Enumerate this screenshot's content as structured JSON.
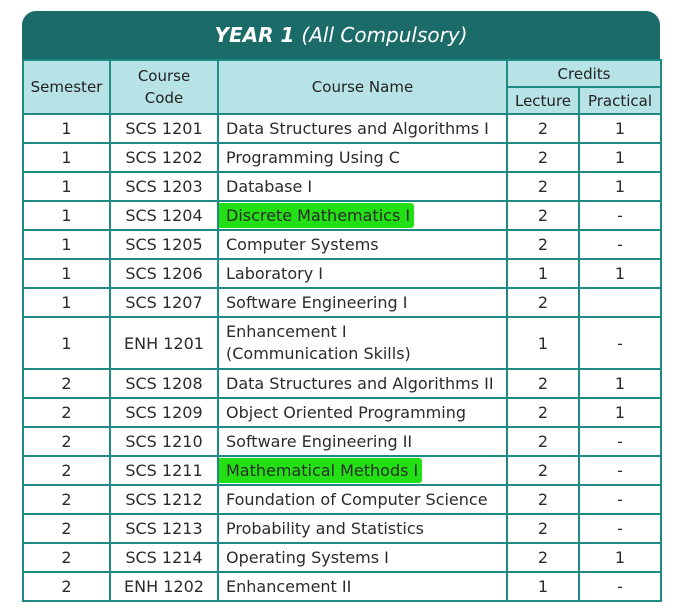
{
  "title": {
    "bold": "YEAR 1",
    "rest": "(All Compulsory)"
  },
  "headers": {
    "semester": "Semester",
    "code_line1": "Course",
    "code_line2": "Code",
    "name": "Course Name",
    "credits": "Credits",
    "lecture": "Lecture",
    "practical": "Practical"
  },
  "colors": {
    "title_bg": "#1b6b69",
    "header_bg": "#b7e2e6",
    "grid": "#1f8a84",
    "highlight": "#22e014"
  },
  "rows": [
    {
      "semester": "1",
      "code": "SCS 1201",
      "name": "Data Structures and Algorithms I",
      "lecture": "2",
      "practical": "1"
    },
    {
      "semester": "1",
      "code": "SCS 1202",
      "name": "Programming Using C",
      "lecture": "2",
      "practical": "1"
    },
    {
      "semester": "1",
      "code": "SCS 1203",
      "name": "Database I",
      "lecture": "2",
      "practical": "1"
    },
    {
      "semester": "1",
      "code": "SCS 1204",
      "name": "Discrete Mathematics I",
      "lecture": "2",
      "practical": "-",
      "highlighted": true
    },
    {
      "semester": "1",
      "code": "SCS 1205",
      "name": "Computer Systems",
      "lecture": "2",
      "practical": "-"
    },
    {
      "semester": "1",
      "code": "SCS 1206",
      "name": "Laboratory I",
      "lecture": "1",
      "practical": "1"
    },
    {
      "semester": "1",
      "code": "SCS 1207",
      "name": "Software Engineering I",
      "lecture": "2",
      "practical": ""
    },
    {
      "semester": "1",
      "code": "ENH 1201",
      "name": "Enhancement I",
      "name_line2": "(Communication Skills)",
      "lecture": "1",
      "practical": "-"
    },
    {
      "semester": "2",
      "code": "SCS 1208",
      "name": "Data Structures and Algorithms II",
      "lecture": "2",
      "practical": "1"
    },
    {
      "semester": "2",
      "code": "SCS 1209",
      "name": "Object Oriented Programming",
      "lecture": "2",
      "practical": "1"
    },
    {
      "semester": "2",
      "code": "SCS 1210",
      "name": "Software Engineering II",
      "lecture": "2",
      "practical": "-"
    },
    {
      "semester": "2",
      "code": "SCS 1211",
      "name": "Mathematical Methods I",
      "lecture": "2",
      "practical": "-",
      "highlighted": true
    },
    {
      "semester": "2",
      "code": "SCS 1212",
      "name": "Foundation of Computer Science",
      "lecture": "2",
      "practical": "-"
    },
    {
      "semester": "2",
      "code": "SCS 1213",
      "name": "Probability and Statistics",
      "lecture": "2",
      "practical": "-"
    },
    {
      "semester": "2",
      "code": "SCS 1214",
      "name": "Operating Systems I",
      "lecture": "2",
      "practical": "1"
    },
    {
      "semester": "2",
      "code": "ENH 1202",
      "name": "Enhancement II",
      "lecture": "1",
      "practical": "-"
    }
  ]
}
